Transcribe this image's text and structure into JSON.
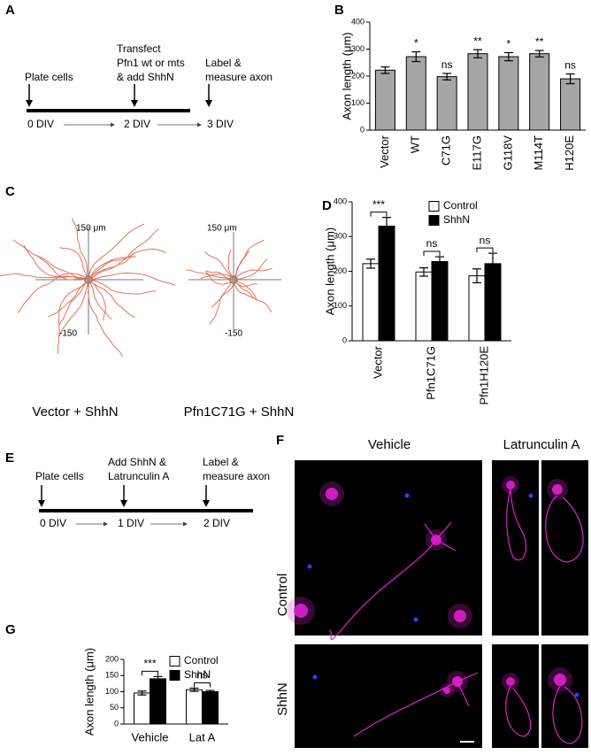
{
  "panel_labels": [
    "A",
    "B",
    "C",
    "D",
    "E",
    "F",
    "G"
  ],
  "timeline_a": {
    "steps": [
      {
        "text": [
          "Plate cells"
        ],
        "day": "0 DIV"
      },
      {
        "text": [
          "Transfect",
          "Pfn1 wt or mts",
          "& add ShhN"
        ],
        "day": "2 DIV"
      },
      {
        "text": [
          "Label &",
          "measure axon"
        ],
        "day": "3 DIV"
      }
    ]
  },
  "chart_data": [
    {
      "type": "bar",
      "y_label": "Axon length (μm)",
      "categories": [
        "Vector",
        "WT",
        "C71G",
        "E117G",
        "G118V",
        "M114T",
        "H120E"
      ],
      "values": [
        222,
        272,
        198,
        283,
        272,
        283,
        190
      ],
      "errors": [
        12,
        18,
        12,
        15,
        15,
        12,
        18
      ],
      "significance": [
        null,
        "*",
        "ns",
        "**",
        "*",
        "**",
        "ns"
      ],
      "color": "#a6a6a6",
      "ylim": [
        0,
        400
      ],
      "yticks": [
        0,
        100,
        200,
        300,
        400
      ]
    },
    {
      "type": "bar",
      "y_label": "Axon length (μm)",
      "categories": [
        "Vector",
        "Pfn1C71G",
        "Pfn1H120E"
      ],
      "series": [
        {
          "name": "Control",
          "color": "#ffffff",
          "values": [
            222,
            198,
            187
          ],
          "errors": [
            13,
            12,
            20
          ]
        },
        {
          "name": "ShhN",
          "color": "#000000",
          "values": [
            330,
            228,
            222
          ],
          "errors": [
            25,
            14,
            30
          ]
        }
      ],
      "significance": [
        "***",
        "ns",
        "ns"
      ],
      "ylim": [
        0,
        400
      ],
      "yticks": [
        0,
        100,
        200,
        300,
        400
      ]
    },
    {
      "type": "bar",
      "y_label": "Axon length (μm)",
      "categories": [
        "Vehicle",
        "Lat A"
      ],
      "series": [
        {
          "name": "Control",
          "color": "#ffffff",
          "values": [
            96,
            106
          ],
          "errors": [
            6,
            5
          ]
        },
        {
          "name": "ShhN",
          "color": "#000000",
          "values": [
            140,
            100
          ],
          "errors": [
            7,
            4
          ]
        }
      ],
      "significance": [
        "***",
        "ns"
      ],
      "ylim": [
        0,
        200
      ],
      "yticks": [
        0,
        50,
        100,
        150,
        200
      ]
    }
  ],
  "tracings": [
    {
      "caption": "Vector + ShhN",
      "scale_top": "150 μm",
      "scale_bottom": "-150"
    },
    {
      "caption": "Pfn1C71G + ShhN",
      "scale_top": "150 μm",
      "scale_bottom": "-150"
    }
  ],
  "timeline_e": {
    "steps": [
      {
        "text": [
          "Plate cells"
        ],
        "day": "0 DIV"
      },
      {
        "text": [
          "Add ShhN &",
          "Latrunculin A"
        ],
        "day": "1 DIV"
      },
      {
        "text": [
          "Label &",
          "measure axon"
        ],
        "day": "2 DIV"
      }
    ]
  },
  "micrographs": {
    "columns": [
      "Vehicle",
      "Latrunculin A"
    ],
    "rows": [
      "Control",
      "ShhN"
    ]
  }
}
